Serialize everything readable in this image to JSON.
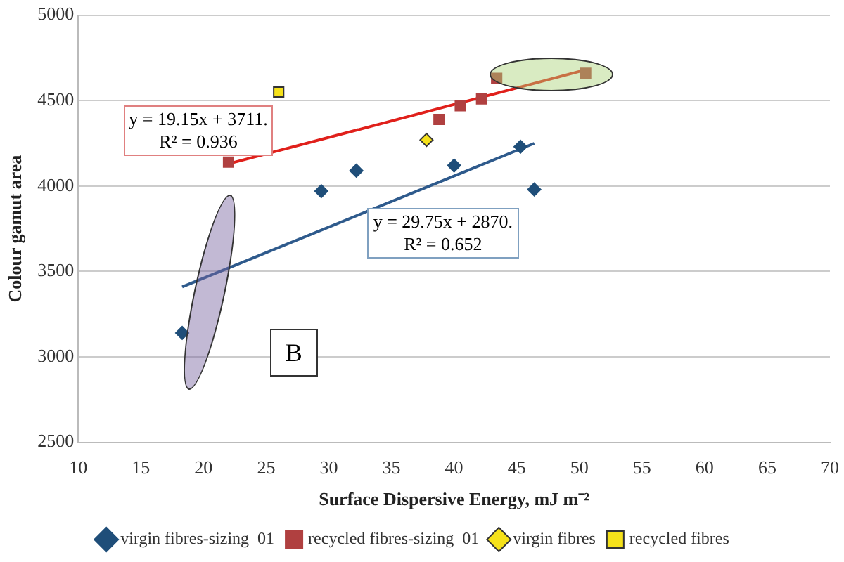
{
  "chart_data": {
    "type": "scatter",
    "xlabel": "Surface Dispersive Energy, mJ m⁻²",
    "ylabel": "Colour gamut area",
    "xlim": [
      10,
      70
    ],
    "xticks": [
      10,
      15,
      20,
      25,
      30,
      35,
      40,
      45,
      50,
      55,
      60,
      65,
      70
    ],
    "ylim": [
      2500,
      5000
    ],
    "yticks": [
      2500,
      3000,
      3500,
      4000,
      4500,
      5000
    ],
    "grid": "y",
    "legend": "bottom",
    "annotations": [
      "y = 19.15x + 3711.\nR² = 0.936",
      "y = 29.75x + 2870.\nR² = 0.652",
      "B"
    ],
    "series": [
      {
        "name": "virgin fibres-sizing  01",
        "color": "#1f4e79",
        "marker": "diamond",
        "x": [
          18.3,
          29.4,
          32.2,
          40,
          45.3,
          46.4
        ],
        "values": [
          3140,
          3970,
          4090,
          4120,
          4230,
          3980
        ]
      },
      {
        "name": "recycled fibres-sizing  01",
        "color": "#b04040",
        "marker": "square",
        "x": [
          22,
          38.8,
          40.5,
          42.2,
          43.4,
          50.5
        ],
        "values": [
          4140,
          4390,
          4470,
          4510,
          4630,
          4660
        ]
      },
      {
        "name": "virgin fibres",
        "color": "#f5e11a",
        "marker": "diamond",
        "x": [
          37.8
        ],
        "values": [
          4270
        ]
      },
      {
        "name": "recycled fibres",
        "color": "#f5e11a",
        "marker": "square",
        "x": [
          26
        ],
        "values": [
          4550
        ]
      },
      {
        "type": "line",
        "color": "#e0201b",
        "marker": "none",
        "x": [
          22,
          50.5
        ],
        "values": [
          4130,
          4680
        ]
      },
      {
        "type": "line",
        "color": "#2e5a8c",
        "marker": "none",
        "x": [
          18.3,
          46.4
        ],
        "values": [
          3410,
          4250
        ]
      }
    ]
  }
}
